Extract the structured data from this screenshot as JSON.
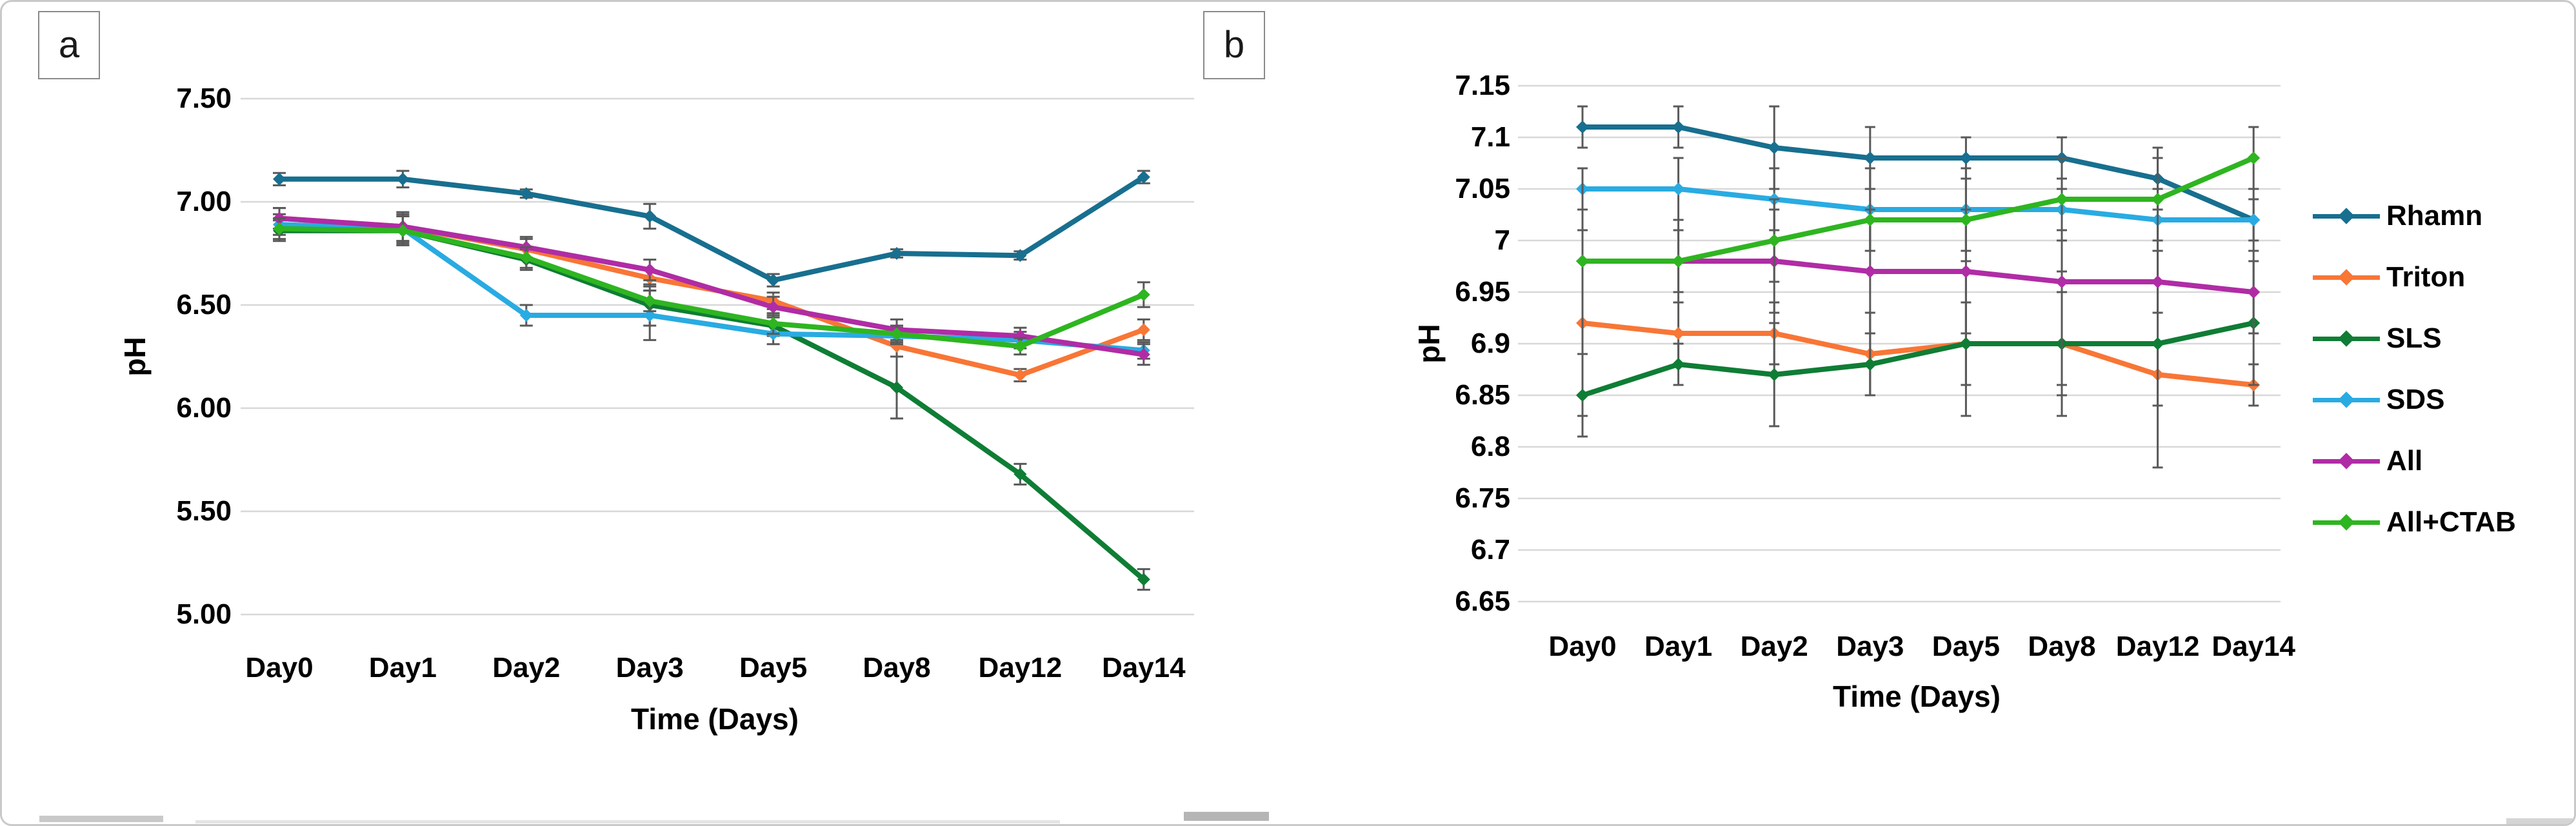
{
  "figure": {
    "panel_a_label": "a",
    "panel_b_label": "b",
    "y_axis_title": "pH",
    "x_axis_title": "Time (Days)"
  },
  "legend": {
    "position": "right",
    "entries": [
      "Rhamn",
      "Triton",
      "SLS",
      "SDS",
      "All",
      "All+CTAB"
    ]
  },
  "colors": {
    "gridline": "#d8d8d8",
    "error_bar": "#595959",
    "rhamn": "#186F8F",
    "triton": "#F87636",
    "sls": "#0F7D35",
    "sds": "#29ABE2",
    "all": "#B02CA5",
    "all_ctab": "#2EB520"
  },
  "chart_data": [
    {
      "type": "line",
      "panel": "a",
      "xlabel": "Time (Days)",
      "ylabel": "pH",
      "ylim": [
        5.0,
        7.5
      ],
      "ytick_step": 0.5,
      "grid": true,
      "y_ticks": [
        "7.50",
        "7.00",
        "6.50",
        "6.00",
        "5.50",
        "5.00"
      ],
      "categories": [
        "Day0",
        "Day1",
        "Day2",
        "Day3",
        "Day5",
        "Day8",
        "Day12",
        "Day14"
      ],
      "series": [
        {
          "name": "Rhamn",
          "color": "#186F8F",
          "values": [
            7.11,
            7.11,
            7.04,
            6.93,
            6.62,
            6.75,
            6.74,
            7.12
          ],
          "errors": [
            0.03,
            0.04,
            0.02,
            0.06,
            0.03,
            0.02,
            0.02,
            0.03
          ]
        },
        {
          "name": "Triton",
          "color": "#F87636",
          "values": [
            6.92,
            6.88,
            6.77,
            6.63,
            6.52,
            6.3,
            6.16,
            6.38
          ],
          "errors": [
            0.05,
            0.07,
            0.05,
            0.04,
            0.04,
            0.05,
            0.03,
            0.05
          ]
        },
        {
          "name": "SLS",
          "color": "#0F7D35",
          "values": [
            6.86,
            6.86,
            6.72,
            6.5,
            6.4,
            6.1,
            5.68,
            5.17
          ],
          "errors": [
            0.05,
            0.07,
            0.05,
            0.1,
            0.05,
            0.15,
            0.05,
            0.05
          ]
        },
        {
          "name": "SDS",
          "color": "#29ABE2",
          "values": [
            6.89,
            6.87,
            6.45,
            6.45,
            6.36,
            6.35,
            6.33,
            6.28
          ],
          "errors": [
            0.05,
            0.07,
            0.05,
            0.12,
            0.05,
            0.04,
            0.04,
            0.04
          ]
        },
        {
          "name": "All",
          "color": "#B02CA5",
          "values": [
            6.92,
            6.88,
            6.78,
            6.67,
            6.49,
            6.38,
            6.35,
            6.26
          ],
          "errors": [
            0.05,
            0.07,
            0.05,
            0.05,
            0.05,
            0.05,
            0.04,
            0.05
          ]
        },
        {
          "name": "All+CTAB",
          "color": "#2EB520",
          "values": [
            6.87,
            6.86,
            6.73,
            6.52,
            6.41,
            6.36,
            6.3,
            6.55
          ],
          "errors": [
            0.05,
            0.07,
            0.05,
            0.05,
            0.05,
            0.04,
            0.04,
            0.06
          ]
        }
      ]
    },
    {
      "type": "line",
      "panel": "b",
      "xlabel": "Time (Days)",
      "ylabel": "pH",
      "ylim": [
        6.65,
        7.15
      ],
      "ytick_step": 0.05,
      "grid": true,
      "legend_position": "right",
      "y_ticks": [
        "7.15",
        "7.1",
        "7.05",
        "7",
        "6.95",
        "6.9",
        "6.85",
        "6.8",
        "6.75",
        "6.7",
        "6.65"
      ],
      "categories": [
        "Day0",
        "Day1",
        "Day2",
        "Day3",
        "Day5",
        "Day8",
        "Day12",
        "Day14"
      ],
      "series": [
        {
          "name": "Rhamn",
          "color": "#186F8F",
          "values": [
            7.11,
            7.11,
            7.09,
            7.08,
            7.08,
            7.08,
            7.06,
            7.02
          ],
          "errors": [
            0.02,
            0.02,
            0.04,
            0.03,
            0.02,
            0.02,
            0.03,
            0.02
          ]
        },
        {
          "name": "Triton",
          "color": "#F87636",
          "values": [
            6.92,
            6.91,
            6.91,
            6.89,
            6.9,
            6.9,
            6.87,
            6.86
          ],
          "errors": [
            0.09,
            0.03,
            0.03,
            0.04,
            0.04,
            0.05,
            0.03,
            0.02
          ]
        },
        {
          "name": "SLS",
          "color": "#0F7D35",
          "values": [
            6.85,
            6.88,
            6.87,
            6.88,
            6.9,
            6.9,
            6.9,
            6.92
          ],
          "errors": [
            0.04,
            0.02,
            0.05,
            0.03,
            0.07,
            0.07,
            0.12,
            0.06
          ]
        },
        {
          "name": "SDS",
          "color": "#29ABE2",
          "values": [
            7.05,
            7.05,
            7.04,
            7.03,
            7.03,
            7.03,
            7.02,
            7.02
          ],
          "errors": [
            0.02,
            0.03,
            0.03,
            0.04,
            0.04,
            0.02,
            0.03,
            0.03
          ]
        },
        {
          "name": "All",
          "color": "#B02CA5",
          "values": [
            6.98,
            6.98,
            6.98,
            6.97,
            6.97,
            6.96,
            6.96,
            6.95
          ],
          "errors": [
            0.09,
            0.04,
            0.05,
            0.06,
            0.06,
            0.1,
            0.03,
            0.04
          ]
        },
        {
          "name": "All+CTAB",
          "color": "#2EB520",
          "values": [
            6.98,
            6.98,
            7.0,
            7.02,
            7.02,
            7.04,
            7.04,
            7.08
          ],
          "errors": [
            0.09,
            0.03,
            0.04,
            0.03,
            0.04,
            0.04,
            0.04,
            0.03
          ]
        }
      ]
    }
  ]
}
